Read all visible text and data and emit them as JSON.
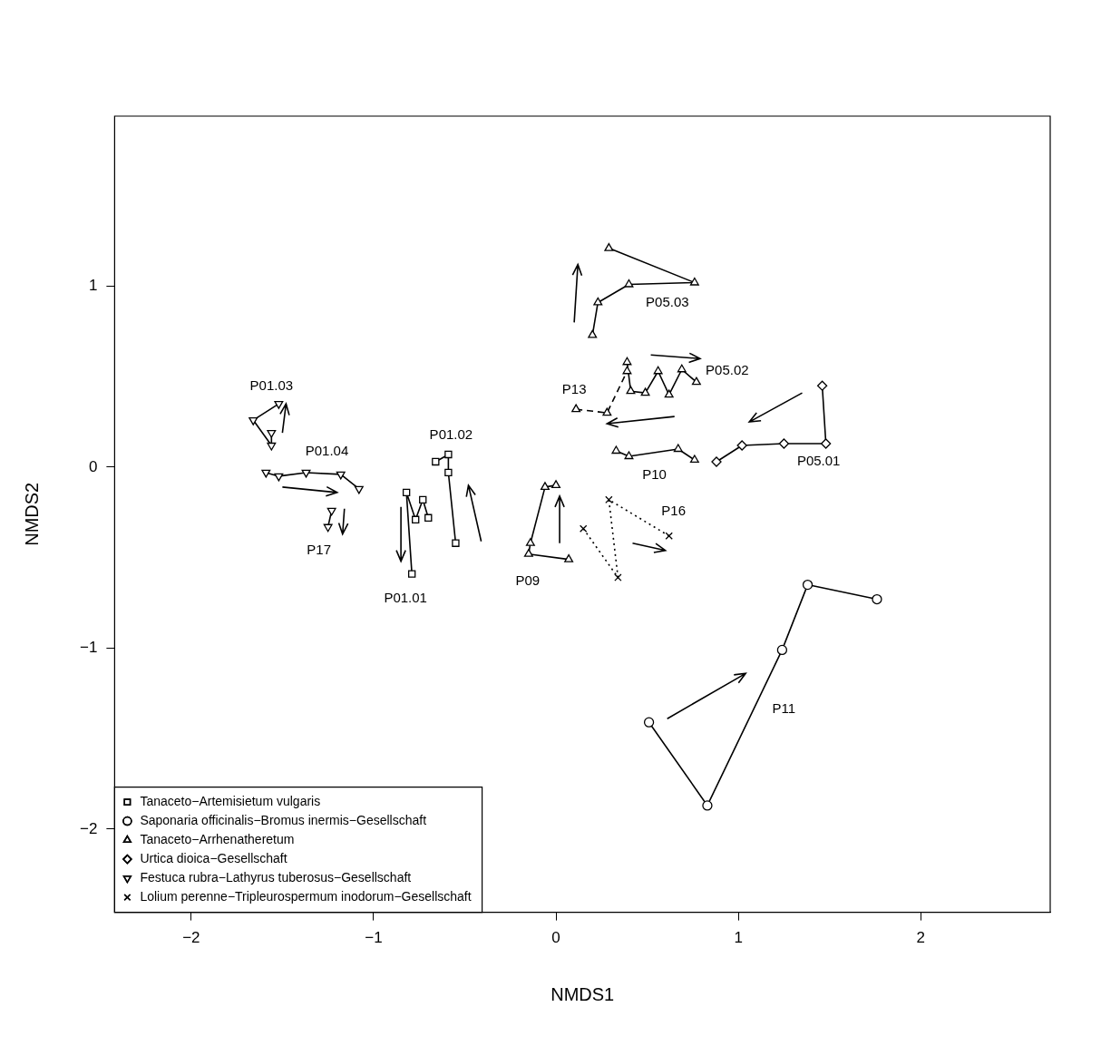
{
  "chart_data": {
    "type": "scatter",
    "xlabel": "NMDS1",
    "ylabel": "NMDS2",
    "xlim": [
      -2.42,
      2.71
    ],
    "ylim": [
      -2.46,
      1.94
    ],
    "xticks": [
      -2,
      -1,
      0,
      1,
      2
    ],
    "yticks": [
      -2,
      -1,
      0,
      1
    ],
    "grid": false,
    "legend": "bottom left",
    "series": [
      {
        "name": "Tanaceto−Artemisietum vulgaris",
        "type": "line",
        "marker": "square",
        "line_style": "solid",
        "color": "#000000",
        "x": [
          -0.79,
          -0.82,
          -0.77,
          -0.73,
          -0.7
        ],
        "values": [
          -0.59,
          -0.14,
          -0.29,
          -0.18,
          -0.28
        ]
      },
      {
        "name": "Saponaria officinalis−Bromus inermis−Gesellschaft",
        "type": "line",
        "marker": "circle",
        "line_style": "solid",
        "color": "#000000",
        "x": [
          0.51,
          0.83,
          1.24,
          1.38,
          1.76
        ],
        "values": [
          -1.41,
          -1.87,
          -1.01,
          -0.65,
          -0.73
        ]
      },
      {
        "name": "Tanaceto−Arrhenatheretum",
        "type": "line",
        "marker": "triangle",
        "line_style": "solid",
        "color": "#000000",
        "x": [
          0.07,
          -0.15,
          -0.14,
          -0.06,
          0.0
        ],
        "values": [
          -0.51,
          -0.48,
          -0.42,
          -0.11,
          -0.1
        ]
      },
      {
        "name": "Urtica dioica−Gesellschaft",
        "type": "line",
        "marker": "diamond",
        "line_style": "solid",
        "color": "#000000",
        "x": [
          0.88,
          1.02,
          1.25,
          1.48,
          1.46
        ],
        "values": [
          0.03,
          0.12,
          0.13,
          0.13,
          0.45
        ]
      },
      {
        "name": "Festuca rubra−Lathyrus tuberosus−Gesellschaft",
        "type": "line",
        "marker": "triangle_down",
        "line_style": "solid",
        "color": "#000000",
        "x": [
          -1.59,
          -1.52,
          -1.37,
          -1.18,
          -1.08
        ],
        "values": [
          -0.03,
          -0.05,
          -0.03,
          -0.04,
          -0.12
        ]
      },
      {
        "name": "Lolium perenne−Tripleurospermum inodorum−Gesellschaft",
        "type": "line",
        "marker": "cross",
        "line_style": "dotted",
        "color": "#000000",
        "x": [
          0.15,
          0.34,
          0.29,
          0.62
        ],
        "values": [
          -0.34,
          -0.61,
          -0.18,
          -0.38
        ]
      },
      {
        "type": "line",
        "marker": "square",
        "line_style": "solid",
        "color": "#000000",
        "x": [
          -0.66,
          -0.59,
          -0.59,
          -0.55
        ],
        "values": [
          0.03,
          0.07,
          -0.03,
          -0.42
        ]
      },
      {
        "type": "line",
        "marker": "triangle_down",
        "line_style": "solid",
        "color": "#000000",
        "x": [
          -1.52,
          -1.66,
          -1.56,
          -1.56
        ],
        "values": [
          0.35,
          0.26,
          0.12,
          0.19
        ]
      },
      {
        "type": "line",
        "marker": "triangle_down",
        "line_style": "solid",
        "color": "#000000",
        "x": [
          -1.23,
          -1.25
        ],
        "values": [
          -0.24,
          -0.33
        ]
      },
      {
        "type": "line",
        "marker": "triangle",
        "line_style": "dashed",
        "color": "#000000",
        "x": [
          0.11,
          0.28,
          0.39
        ],
        "values": [
          0.32,
          0.3,
          0.53
        ]
      },
      {
        "type": "line",
        "marker": "triangle",
        "line_style": "solid",
        "color": "#000000",
        "x": [
          0.39,
          0.41,
          0.49,
          0.56,
          0.62,
          0.69,
          0.77
        ],
        "values": [
          0.58,
          0.42,
          0.41,
          0.53,
          0.4,
          0.54,
          0.47
        ]
      },
      {
        "type": "line",
        "marker": "triangle",
        "line_style": "solid",
        "color": "#000000",
        "x": [
          0.2,
          0.23,
          0.4,
          0.76,
          0.29
        ],
        "values": [
          0.73,
          0.91,
          1.01,
          1.02,
          1.21
        ]
      },
      {
        "type": "line",
        "marker": "triangle",
        "line_style": "solid",
        "color": "#000000",
        "x": [
          0.33,
          0.4,
          0.67,
          0.76
        ],
        "values": [
          0.09,
          0.06,
          0.1,
          0.04
        ]
      }
    ],
    "annotations": [
      {
        "text": "P01.03",
        "x": -1.52,
        "y": 0.35
      },
      {
        "text": "P01.04",
        "x": -1.37,
        "y": -0.03
      },
      {
        "text": "P17",
        "x": -1.25,
        "y": -0.33
      },
      {
        "text": "P01.01",
        "x": -0.79,
        "y": -0.59
      },
      {
        "text": "P01.02",
        "x": -0.59,
        "y": 0.07
      },
      {
        "text": "P09",
        "x": -0.15,
        "y": -0.48
      },
      {
        "text": "P16",
        "x": 0.62,
        "y": -0.38
      },
      {
        "text": "P13",
        "x": 0.11,
        "y": 0.32
      },
      {
        "text": "P05.02",
        "x": 0.77,
        "y": 0.47
      },
      {
        "text": "P05.03",
        "x": 0.76,
        "y": 1.02
      },
      {
        "text": "P10",
        "x": 0.4,
        "y": 0.06
      },
      {
        "text": "P05.01",
        "x": 1.48,
        "y": 0.13
      },
      {
        "text": "P11",
        "x": 1.08,
        "y": -1.34
      }
    ]
  }
}
